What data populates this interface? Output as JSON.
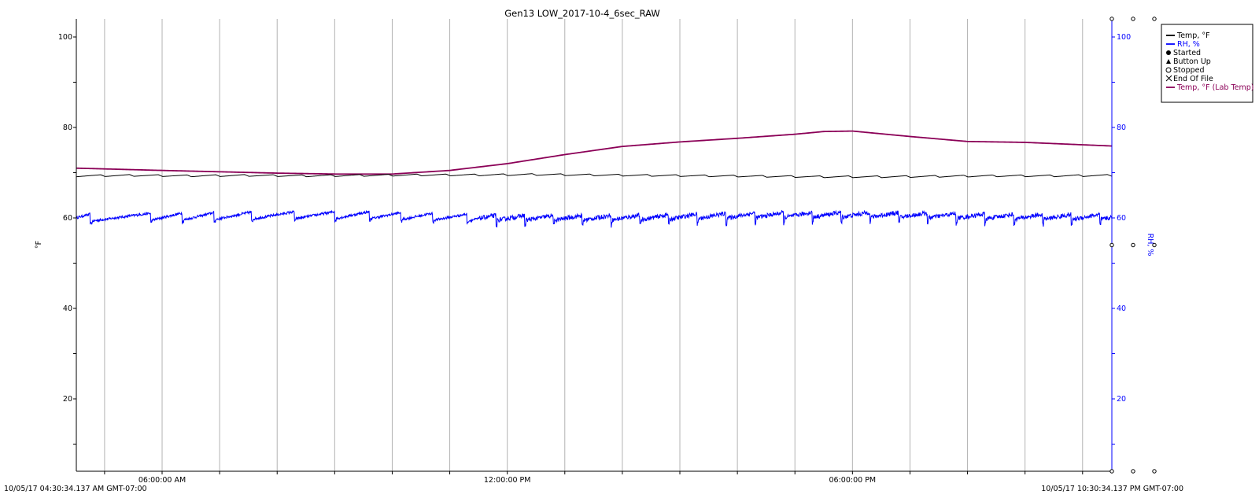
{
  "chart_data": {
    "type": "line",
    "title": "Gen13 LOW_2017-10-4_6sec_RAW",
    "ylabel_left": "°F",
    "ylabel_right": "RH, %",
    "ylim": [
      4,
      104
    ],
    "ylim_right": [
      4,
      104
    ],
    "y_ticks": [
      20,
      40,
      60,
      80,
      100
    ],
    "y_ticks_right": [
      20,
      40,
      60,
      80,
      100
    ],
    "x_start_label": "10/05/17 04:30:34.137 AM GMT-07:00",
    "x_end_label": "10/05/17 10:30:34.137 PM GMT-07:00",
    "x_range_hours": [
      4.509,
      22.509
    ],
    "x_tick_labels": [
      {
        "hour": 6,
        "label": "06:00:00 AM"
      },
      {
        "hour": 12,
        "label": "12:00:00 PM"
      },
      {
        "hour": 18,
        "label": "06:00:00 PM"
      }
    ],
    "grid": "vertical",
    "legend_position": "top-right",
    "legend": [
      {
        "label": "Temp, °F",
        "marker": "line",
        "color": "#000000"
      },
      {
        "label": "RH, %",
        "marker": "line",
        "color": "#0000ff"
      },
      {
        "label": "Started",
        "marker": "filled-circle",
        "color": "#000000"
      },
      {
        "label": "Button Up",
        "marker": "triangle",
        "color": "#000000"
      },
      {
        "label": "Stopped",
        "marker": "open-circle",
        "color": "#000000"
      },
      {
        "label": "End Of File",
        "marker": "cross",
        "color": "#000000"
      },
      {
        "label": "Temp, °F (Lab Temp)",
        "marker": "line",
        "color": "#8b0057"
      }
    ],
    "series": [
      {
        "key": "temp",
        "name": "Temp, °F",
        "color": "#000000",
        "axis": "left",
        "x": [
          4.509,
          5.5,
          6.5,
          7.5,
          8.5,
          9.5,
          10.5,
          11.5,
          12.5,
          13.5,
          14.5,
          15.5,
          16.5,
          17.5,
          18.5,
          19.5,
          20.5,
          21.5,
          22.509
        ],
        "y": [
          69.3,
          69.4,
          69.3,
          69.4,
          69.3,
          69.4,
          69.5,
          69.5,
          69.6,
          69.5,
          69.4,
          69.3,
          69.2,
          69.1,
          69.1,
          69.2,
          69.3,
          69.3,
          69.4
        ],
        "ripple_amplitude": 0.4,
        "ripple_period_hours": 0.5
      },
      {
        "key": "rh",
        "name": "RH, %",
        "color": "#0000ff",
        "axis": "right",
        "x": [
          4.509,
          5.5,
          6.5,
          7.5,
          8.5,
          9.5,
          10.5,
          11.5,
          12.5,
          13.5,
          14.5,
          15.5,
          16.5,
          17.5,
          18.5,
          19.5,
          20.5,
          21.5,
          22.509
        ],
        "y": [
          60.0,
          60.2,
          60.3,
          60.5,
          60.6,
          60.6,
          60.3,
          60.0,
          60.0,
          60.0,
          60.1,
          60.4,
          60.6,
          60.7,
          60.7,
          60.5,
          60.3,
          60.2,
          60.2
        ],
        "cycle_peaks_hours": [
          4.75,
          5.8,
          6.35,
          6.9,
          7.55,
          8.3,
          9.0,
          9.6,
          10.15,
          10.7,
          11.3
        ],
        "cycle_amplitude": 1.6,
        "noise_amplitude": 0.7
      },
      {
        "key": "lab",
        "name": "Temp, °F (Lab Temp)",
        "color": "#8b0057",
        "axis": "left",
        "x": [
          4.509,
          6.0,
          7.0,
          8.0,
          9.0,
          10.0,
          11.0,
          12.0,
          12.3,
          13.0,
          14.0,
          15.0,
          16.0,
          17.0,
          17.5,
          18.0,
          19.0,
          20.0,
          21.0,
          22.509
        ],
        "y": [
          71.0,
          70.5,
          70.2,
          69.9,
          69.7,
          69.7,
          70.5,
          72.0,
          72.6,
          74.0,
          75.8,
          76.8,
          77.6,
          78.5,
          79.1,
          79.2,
          78.0,
          76.9,
          76.7,
          75.9
        ]
      }
    ],
    "event_markers": [
      {
        "type": "open-circle",
        "hour": 22.509,
        "value": 104
      },
      {
        "type": "open-circle",
        "hour": 22.509,
        "value": 54
      },
      {
        "type": "open-circle",
        "hour": 22.509,
        "value": 4
      }
    ]
  }
}
